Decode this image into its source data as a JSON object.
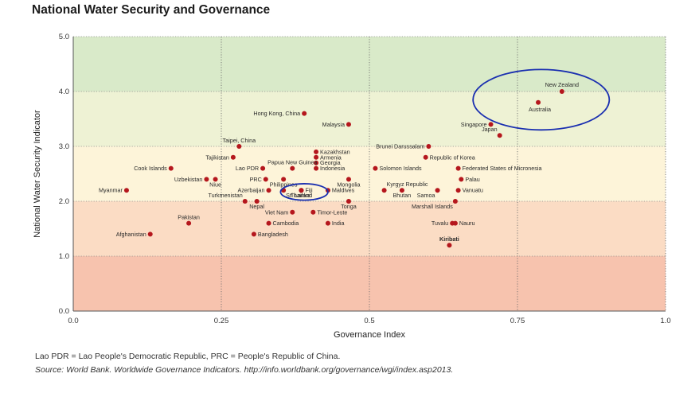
{
  "title": "National Water Security and Governance",
  "chart_data": {
    "type": "scatter",
    "xlabel": "Governance Index",
    "ylabel": "National Water Security Indicator",
    "xlim": [
      0.0,
      1.0
    ],
    "ylim": [
      0.0,
      5.0
    ],
    "x_ticks": [
      "0.0",
      "0.25",
      "0.5",
      "0.75",
      "1.0"
    ],
    "y_ticks": [
      "0.0",
      "1.0",
      "2.0",
      "3.0",
      "4.0",
      "5.0"
    ],
    "bands": [
      {
        "from": 0,
        "to": 1,
        "color": "#f7c3ae"
      },
      {
        "from": 1,
        "to": 2,
        "color": "#fbdcc4"
      },
      {
        "from": 2,
        "to": 3,
        "color": "#fdf4d9"
      },
      {
        "from": 3,
        "to": 4,
        "color": "#eef2d4"
      },
      {
        "from": 4,
        "to": 5,
        "color": "#d9eac9"
      }
    ],
    "marker_color": "#b5171d",
    "highlight_color": "#1a2fb0",
    "points": [
      {
        "label": "New Zealand",
        "x": 0.825,
        "y": 4.0,
        "anchor": "top"
      },
      {
        "label": "Australia",
        "x": 0.785,
        "y": 3.8,
        "anchor": "below"
      },
      {
        "label": "Hong Kong, China",
        "x": 0.39,
        "y": 3.6,
        "anchor": "left"
      },
      {
        "label": "Malaysia",
        "x": 0.465,
        "y": 3.4,
        "anchor": "left"
      },
      {
        "label": "Singapore",
        "x": 0.705,
        "y": 3.4,
        "anchor": "left"
      },
      {
        "label": "Japan",
        "x": 0.72,
        "y": 3.2,
        "anchor": "above-left"
      },
      {
        "label": "Taipei, China",
        "x": 0.28,
        "y": 3.0,
        "anchor": "above"
      },
      {
        "label": "Brunei Darussalam",
        "x": 0.6,
        "y": 3.0,
        "anchor": "left"
      },
      {
        "label": "Tajikistan",
        "x": 0.27,
        "y": 2.8,
        "anchor": "left"
      },
      {
        "label": "Papua New Guinea",
        "x": 0.37,
        "y": 2.6,
        "anchor": "above"
      },
      {
        "label": "Kazakhstan",
        "x": 0.41,
        "y": 2.9,
        "anchor": "right"
      },
      {
        "label": "Armenia",
        "x": 0.41,
        "y": 2.8,
        "anchor": "right"
      },
      {
        "label": "Georgia",
        "x": 0.41,
        "y": 2.7,
        "anchor": "right"
      },
      {
        "label": "Indonesia",
        "x": 0.41,
        "y": 2.6,
        "anchor": "right"
      },
      {
        "label": "Republic of Korea",
        "x": 0.595,
        "y": 2.8,
        "anchor": "right"
      },
      {
        "label": "Cook Islands",
        "x": 0.165,
        "y": 2.6,
        "anchor": "left"
      },
      {
        "label": "Lao PDR",
        "x": 0.32,
        "y": 2.6,
        "anchor": "left"
      },
      {
        "label": "Solomon Islands",
        "x": 0.51,
        "y": 2.6,
        "anchor": "right"
      },
      {
        "label": "Federated States of Micronesia",
        "x": 0.65,
        "y": 2.6,
        "anchor": "right"
      },
      {
        "label": "Uzbekistan",
        "x": 0.225,
        "y": 2.4,
        "anchor": "left"
      },
      {
        "label": "Niue",
        "x": 0.24,
        "y": 2.4,
        "anchor": "below"
      },
      {
        "label": "PRC",
        "x": 0.325,
        "y": 2.4,
        "anchor": "left"
      },
      {
        "label": "Philippines",
        "x": 0.355,
        "y": 2.4,
        "anchor": "below"
      },
      {
        "label": "Mongolia",
        "x": 0.465,
        "y": 2.4,
        "anchor": "below"
      },
      {
        "label": "Palau",
        "x": 0.655,
        "y": 2.4,
        "anchor": "right"
      },
      {
        "label": "Myanmar",
        "x": 0.09,
        "y": 2.2,
        "anchor": "left"
      },
      {
        "label": "Azerbaijan",
        "x": 0.33,
        "y": 2.2,
        "anchor": "left"
      },
      {
        "label": "Sri Lanka",
        "x": 0.355,
        "y": 2.2,
        "anchor": "below-right"
      },
      {
        "label": "Fiji",
        "x": 0.385,
        "y": 2.2,
        "anchor": "right"
      },
      {
        "label": "Thailand",
        "x": 0.385,
        "y": 2.2,
        "anchor": "below"
      },
      {
        "label": "Maldives",
        "x": 0.43,
        "y": 2.2,
        "anchor": "right"
      },
      {
        "label": "Kyrgyz Republic",
        "x": 0.525,
        "y": 2.2,
        "anchor": "above-right"
      },
      {
        "label": "Bhutan",
        "x": 0.555,
        "y": 2.2,
        "anchor": "below"
      },
      {
        "label": "Samoa",
        "x": 0.615,
        "y": 2.2,
        "anchor": "below-left"
      },
      {
        "label": "Vanuatu",
        "x": 0.65,
        "y": 2.2,
        "anchor": "right"
      },
      {
        "label": "Turkmenistan",
        "x": 0.29,
        "y": 2.0,
        "anchor": "above-left"
      },
      {
        "label": "Nepal",
        "x": 0.31,
        "y": 2.0,
        "anchor": "below"
      },
      {
        "label": "Tonga",
        "x": 0.465,
        "y": 2.0,
        "anchor": "below"
      },
      {
        "label": "Marshall Islands",
        "x": 0.645,
        "y": 2.0,
        "anchor": "below-left"
      },
      {
        "label": "Viet Nam",
        "x": 0.37,
        "y": 1.8,
        "anchor": "left"
      },
      {
        "label": "Timor-Leste",
        "x": 0.405,
        "y": 1.8,
        "anchor": "right"
      },
      {
        "label": "Pakistan",
        "x": 0.195,
        "y": 1.6,
        "anchor": "above"
      },
      {
        "label": "Cambodia",
        "x": 0.33,
        "y": 1.6,
        "anchor": "right"
      },
      {
        "label": "India",
        "x": 0.43,
        "y": 1.6,
        "anchor": "right"
      },
      {
        "label": "Tuvalu",
        "x": 0.64,
        "y": 1.6,
        "anchor": "left"
      },
      {
        "label": "Nauru",
        "x": 0.645,
        "y": 1.6,
        "anchor": "right"
      },
      {
        "label": "Afghanistan",
        "x": 0.13,
        "y": 1.4,
        "anchor": "left"
      },
      {
        "label": "Bangladesh",
        "x": 0.305,
        "y": 1.4,
        "anchor": "right"
      },
      {
        "label": "Kiribati",
        "x": 0.635,
        "y": 1.2,
        "anchor": "above",
        "bold": true
      }
    ],
    "highlights": [
      {
        "target": "Australia and New Zealand",
        "cx": 0.79,
        "cy": 3.85,
        "rx": 0.115,
        "ry": 0.55
      },
      {
        "target": "Fiji and Thailand",
        "cx": 0.39,
        "cy": 2.17,
        "rx": 0.04,
        "ry": 0.15
      }
    ]
  },
  "note": "Lao PDR = Lao People's Democratic Republic, PRC = People's Republic of China.",
  "source": "Source: World Bank. Worldwide Governance Indicators. http://info.worldbank.org/governance/wgi/index.asp2013."
}
